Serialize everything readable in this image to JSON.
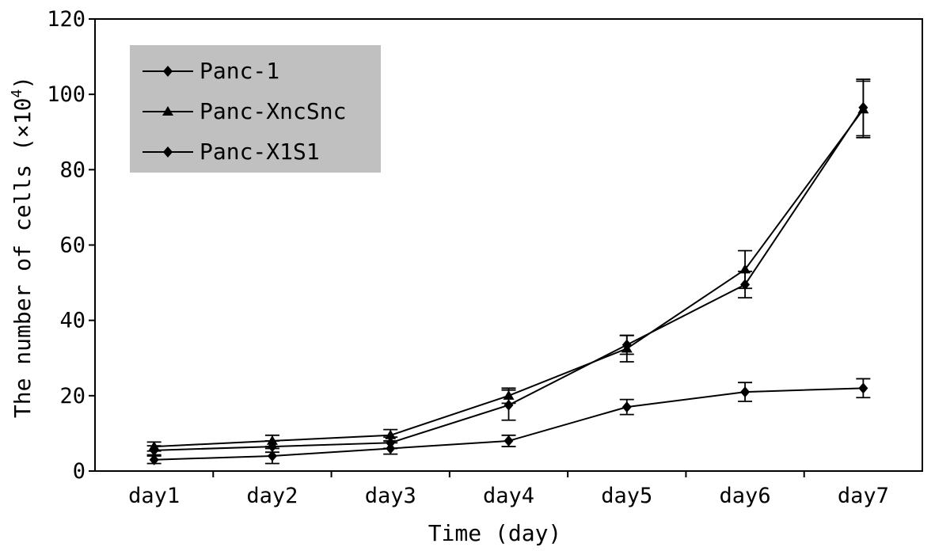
{
  "chart_data": {
    "type": "line",
    "xlabel": "Time (day)",
    "ylabel": "The number of cells (×10",
    "ylabel_exp": "4",
    "ylabel_close": ")",
    "categories": [
      "day1",
      "day2",
      "day3",
      "day4",
      "day5",
      "day6",
      "day7"
    ],
    "ylim": [
      0,
      120
    ],
    "yticks": [
      0,
      20,
      40,
      60,
      80,
      100,
      120
    ],
    "grid": false,
    "legend_position": "top-left",
    "legend_background": "#c0c0c0",
    "series": [
      {
        "name": "Panc-1",
        "marker": "diamond",
        "values": [
          5.5,
          6.5,
          7.5,
          17.5,
          33.5,
          49.5,
          96.5
        ],
        "errors": [
          1.2,
          1.5,
          1.5,
          4.0,
          2.5,
          3.5,
          7.5
        ]
      },
      {
        "name": "Panc-XncSnc",
        "marker": "triangle",
        "values": [
          6.5,
          8.0,
          9.5,
          20.0,
          32.5,
          53.5,
          96.0
        ],
        "errors": [
          1.2,
          1.5,
          1.5,
          2.0,
          3.5,
          5.0,
          7.5
        ]
      },
      {
        "name": "Panc-X1S1",
        "marker": "diamond",
        "values": [
          3.0,
          4.0,
          6.0,
          8.0,
          17.0,
          21.0,
          22.0
        ],
        "errors": [
          1.0,
          2.0,
          1.5,
          1.5,
          2.0,
          2.5,
          2.5
        ]
      }
    ]
  }
}
